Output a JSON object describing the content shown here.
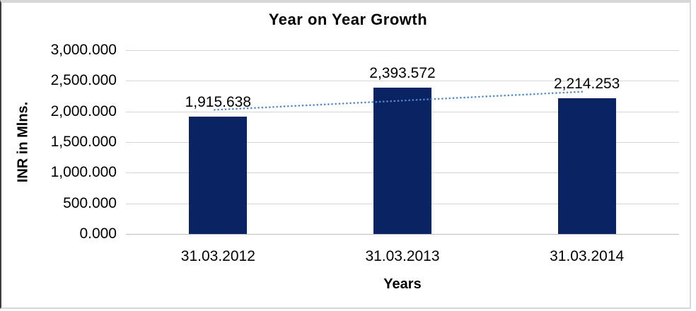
{
  "chart_data": {
    "type": "bar",
    "title": "Year on Year Growth",
    "xlabel": "Years",
    "ylabel": "INR in Mlns.",
    "categories": [
      "31.03.2012",
      "31.03.2013",
      "31.03.2014"
    ],
    "values": [
      1915.638,
      2393.572,
      2214.253
    ],
    "data_labels": [
      "1,915.638",
      "2,393.572",
      "2,214.253"
    ],
    "ylim": [
      0,
      3000
    ],
    "yticks": [
      {
        "value": 0,
        "label": "0.000"
      },
      {
        "value": 500,
        "label": "500.000"
      },
      {
        "value": 1000,
        "label": "1,000.000"
      },
      {
        "value": 1500,
        "label": "1,500.000"
      },
      {
        "value": 2000,
        "label": "2,000.000"
      },
      {
        "value": 2500,
        "label": "2,500.000"
      },
      {
        "value": 3000,
        "label": "3,000.000"
      }
    ],
    "grid": true,
    "legend": "none",
    "trendline": {
      "type": "linear",
      "style": "dotted"
    },
    "colors": {
      "bar": "#0A2363",
      "trendline": "#5489CA",
      "gridline": "#D6D6D6",
      "axis_line": "#BDBDBD",
      "text": "#000000",
      "background": "#FFFFFF"
    }
  }
}
